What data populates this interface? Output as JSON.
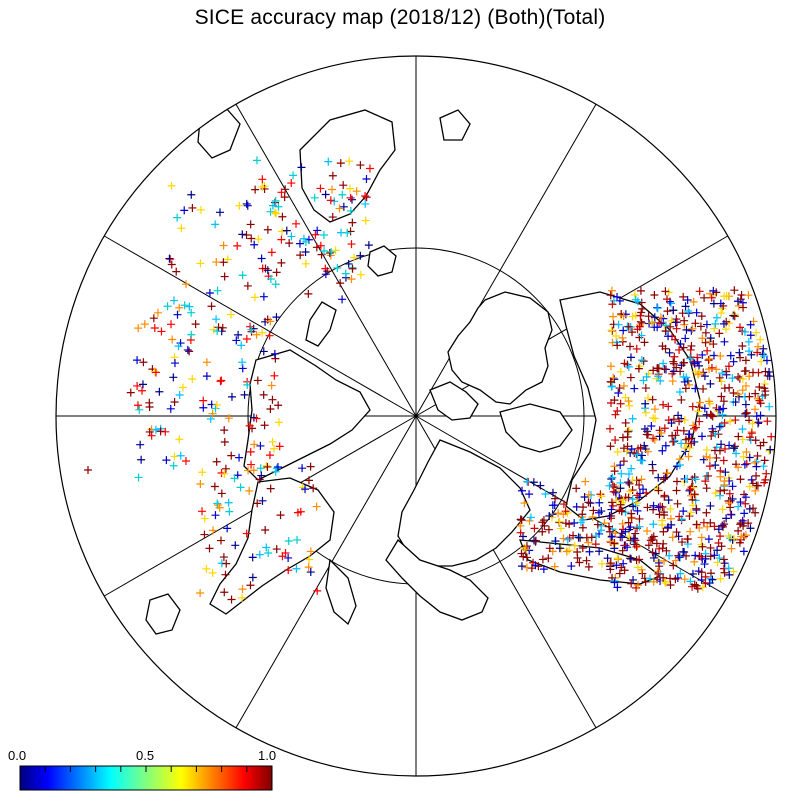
{
  "title": "SICE accuracy map (2018/12) (Both)(Total)",
  "colorbar": {
    "ticks": [
      "0.0",
      "0.5",
      "1.0"
    ],
    "colors": [
      "#00007f",
      "#0000ff",
      "#0080ff",
      "#00ffff",
      "#80ff80",
      "#ffff00",
      "#ff8000",
      "#ff0000",
      "#7f0000"
    ]
  },
  "map": {
    "projection": "north polar stereographic",
    "meridian_count": 12,
    "parallel": "inner latitude circle",
    "marker": "plus",
    "clusters": [
      {
        "region": "Atlantic / Barents side",
        "color_mix": [
          "#8b0000",
          "#8b0000",
          "#8b0000",
          "#cc0000",
          "#ff8c00",
          "#ffd700",
          "#00bfff",
          "#0000cd",
          "#00008b"
        ]
      },
      {
        "region": "Bering / Okhotsk side",
        "color_mix": [
          "#8b0000",
          "#8b0000",
          "#ff0000",
          "#ff8c00",
          "#ffd700",
          "#00ced1",
          "#00bfff",
          "#0000cd",
          "#00008b"
        ]
      }
    ]
  }
}
